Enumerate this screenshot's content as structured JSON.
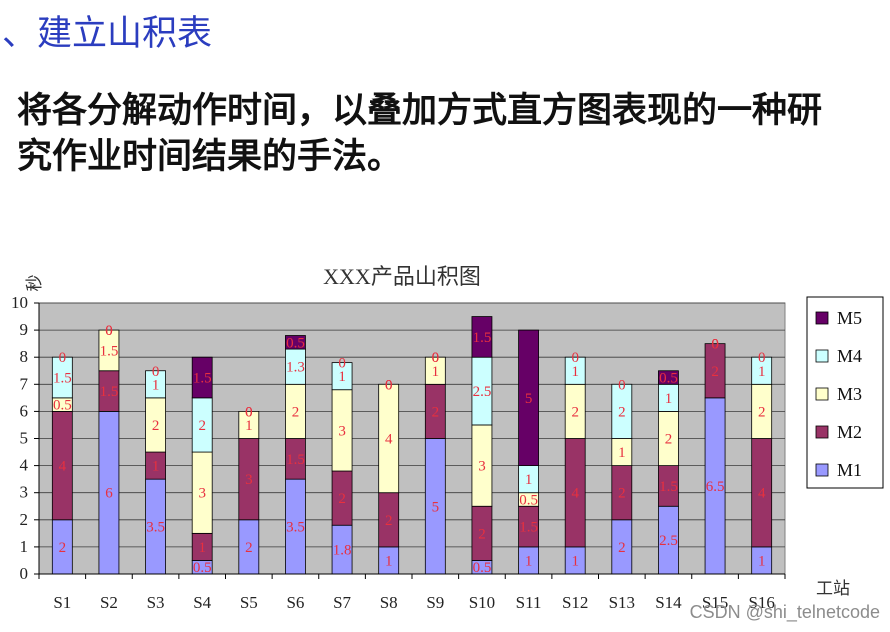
{
  "slide": {
    "title": "、建立山积表",
    "title_color": "#2B3DBF",
    "body_lines": [
      "将各分解动作时间，以叠加方式直方图表现的一种研",
      "究作业时间结果的手法。"
    ]
  },
  "chart_data": {
    "type": "bar",
    "stacked": true,
    "title": "XXX产品山积图",
    "xlabel": "工站",
    "ylabel": "秒",
    "ylim": [
      0,
      10
    ],
    "yticks": [
      0,
      1,
      2,
      3,
      4,
      5,
      6,
      7,
      8,
      9,
      10
    ],
    "grid": true,
    "data_labels": true,
    "label_color": "#E8303F",
    "plot_background": "#C0C0C0",
    "legend": {
      "position": "right",
      "order": [
        "M5",
        "M4",
        "M3",
        "M2",
        "M1"
      ]
    },
    "categories": [
      "S1",
      "S2",
      "S3",
      "S4",
      "S5",
      "S6",
      "S7",
      "S8",
      "S9",
      "S10",
      "S11",
      "S12",
      "S13",
      "S14",
      "S15",
      "S16"
    ],
    "series": [
      {
        "name": "M1",
        "color": "#9999FF",
        "values": [
          2,
          6,
          3.5,
          0.5,
          2,
          3.5,
          1.8,
          1,
          5,
          0.5,
          1,
          1,
          2,
          2.5,
          6.5,
          1
        ]
      },
      {
        "name": "M2",
        "color": "#993366",
        "values": [
          4,
          1.5,
          1,
          1,
          3,
          1.5,
          2,
          2,
          2,
          2,
          1.5,
          4,
          2,
          1.5,
          2,
          4
        ]
      },
      {
        "name": "M3",
        "color": "#FFFFCC",
        "values": [
          0.5,
          1.5,
          2,
          3,
          1,
          2,
          3,
          4,
          1,
          3,
          0.5,
          2,
          1,
          2,
          0,
          2
        ]
      },
      {
        "name": "M4",
        "color": "#CCFFFF",
        "values": [
          1.5,
          0,
          1,
          2,
          0,
          1.3,
          1,
          0,
          0,
          2.5,
          1,
          1,
          2,
          1,
          0,
          1
        ]
      },
      {
        "name": "M5",
        "color": "#660066",
        "values": [
          0,
          0,
          0,
          1.5,
          0,
          0.5,
          0,
          0,
          0,
          1.5,
          5,
          0,
          0,
          0.5,
          0,
          0
        ]
      }
    ]
  },
  "watermark": "CSDN @shi_telnetcode"
}
